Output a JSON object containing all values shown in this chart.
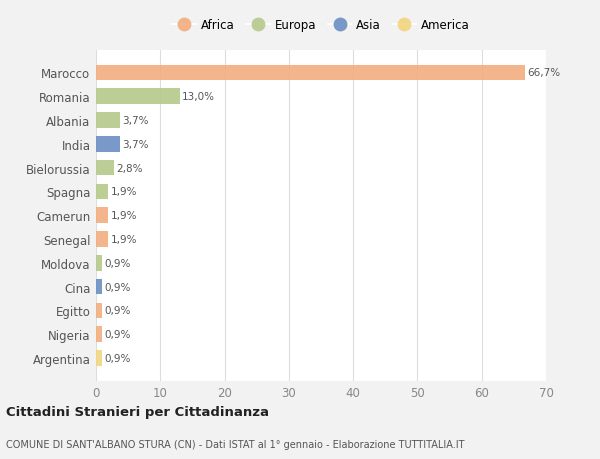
{
  "countries": [
    "Marocco",
    "Romania",
    "Albania",
    "India",
    "Bielorussia",
    "Spagna",
    "Camerun",
    "Senegal",
    "Moldova",
    "Cina",
    "Egitto",
    "Nigeria",
    "Argentina"
  ],
  "values": [
    66.7,
    13.0,
    3.7,
    3.7,
    2.8,
    1.9,
    1.9,
    1.9,
    0.9,
    0.9,
    0.9,
    0.9,
    0.9
  ],
  "labels": [
    "66,7%",
    "13,0%",
    "3,7%",
    "3,7%",
    "2,8%",
    "1,9%",
    "1,9%",
    "1,9%",
    "0,9%",
    "0,9%",
    "0,9%",
    "0,9%",
    "0,9%"
  ],
  "continents": [
    "Africa",
    "Europa",
    "Europa",
    "Asia",
    "Europa",
    "Europa",
    "Africa",
    "Africa",
    "Europa",
    "Asia",
    "Africa",
    "Africa",
    "America"
  ],
  "continent_colors": {
    "Africa": "#F2AD7E",
    "Europa": "#B5C98A",
    "Asia": "#6B8FC4",
    "America": "#F2D57E"
  },
  "legend_order": [
    "Africa",
    "Europa",
    "Asia",
    "America"
  ],
  "title": "Cittadini Stranieri per Cittadinanza",
  "subtitle": "COMUNE DI SANT'ALBANO STURA (CN) - Dati ISTAT al 1° gennaio - Elaborazione TUTTITALIA.IT",
  "xlim": [
    0,
    70
  ],
  "xticks": [
    0,
    10,
    20,
    30,
    40,
    50,
    60,
    70
  ],
  "bg_color": "#f2f2f2",
  "plot_bg_color": "#ffffff"
}
